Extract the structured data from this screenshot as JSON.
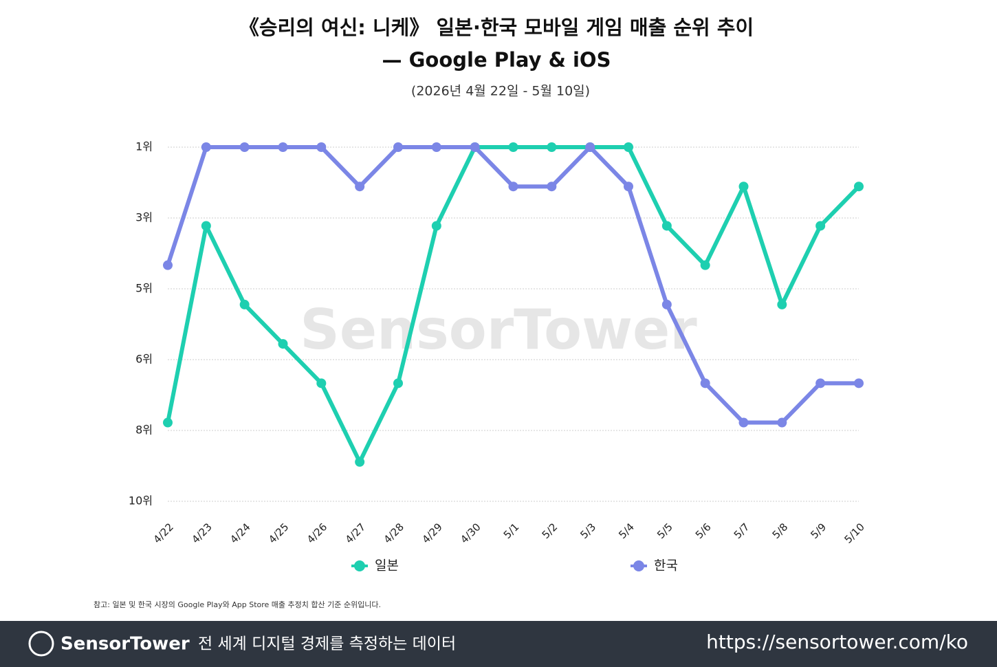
{
  "chart_data": {
    "type": "line",
    "title": [
      "《승리의 여신: 니케》 일본·한국 모바일 게임 매출 순위 추이",
      "— Google Play & iOS"
    ],
    "subtitle": "(2026년 4월 22일 - 5월 10일)",
    "categories": [
      "4/22",
      "4/23",
      "4/24",
      "4/25",
      "4/26",
      "4/27",
      "4/28",
      "4/29",
      "4/30",
      "5/1",
      "5/2",
      "5/3",
      "5/4",
      "5/5",
      "5/6",
      "5/7",
      "5/8",
      "5/9",
      "5/10"
    ],
    "series": [
      {
        "name": "일본",
        "color": "#1ecfb0",
        "values": [
          8,
          3,
          5,
          6,
          7,
          9,
          7,
          3,
          1,
          1,
          1,
          1,
          1,
          3,
          4,
          2,
          5,
          3,
          2
        ]
      },
      {
        "name": "한국",
        "color": "#7b86e6",
        "values": [
          4,
          1,
          1,
          1,
          1,
          2,
          1,
          1,
          1,
          2,
          2,
          1,
          2,
          5,
          7,
          8,
          8,
          7,
          7
        ]
      }
    ],
    "ylim": [
      1,
      10
    ],
    "y_inverted": true,
    "yticks": [
      {
        "value": 1,
        "label": "1위"
      },
      {
        "value": 2.8,
        "label": "3위"
      },
      {
        "value": 4.6,
        "label": "5위"
      },
      {
        "value": 6.4,
        "label": "6위"
      },
      {
        "value": 8.2,
        "label": "8위"
      },
      {
        "value": 10,
        "label": "10위"
      }
    ],
    "grid": true,
    "watermark": "SensorTower",
    "note": "참고: 일본 및 한국 시장의 Google Play와 App Store 매출 추정치 합산 기준 순위입니다."
  },
  "footer": {
    "brand": "SensorTower",
    "tagline": "전 세계 디지털 경제를 측정하는 데이터",
    "url": "https://sensortower.com/ko"
  }
}
